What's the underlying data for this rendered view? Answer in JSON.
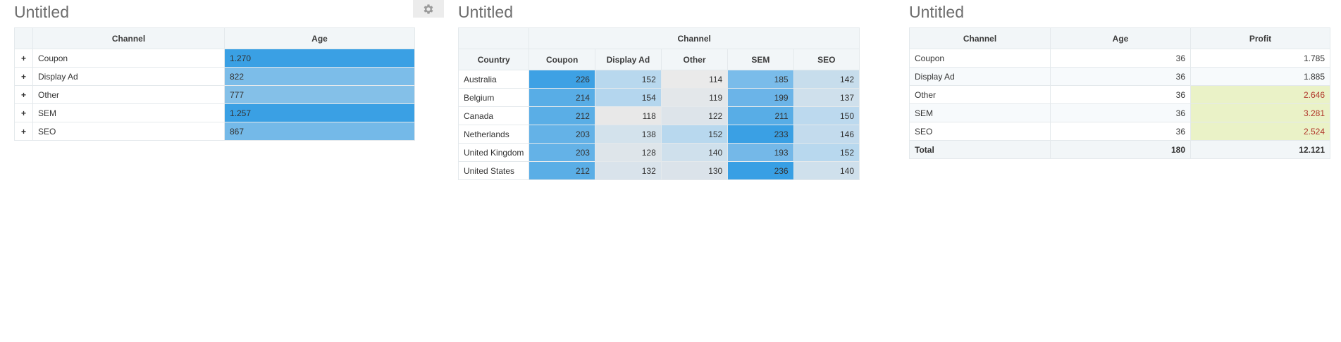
{
  "widgets": [
    {
      "title": "Untitled",
      "headers": [
        "Channel",
        "Age"
      ],
      "rows": [
        {
          "label": "Coupon",
          "value": "1.270",
          "color": "#3aa0e4"
        },
        {
          "label": "Display Ad",
          "value": "822",
          "color": "#7cbde9"
        },
        {
          "label": "Other",
          "value": "777",
          "color": "#84c0e8"
        },
        {
          "label": "SEM",
          "value": "1.257",
          "color": "#3aa0e4"
        },
        {
          "label": "SEO",
          "value": "867",
          "color": "#74b9e8"
        }
      ],
      "expander_symbol": "+",
      "settings_icon": "gear-icon"
    },
    {
      "title": "Untitled",
      "column_group": "Channel",
      "row_header": "Country",
      "columns": [
        "Coupon",
        "Display Ad",
        "Other",
        "SEM",
        "SEO"
      ],
      "rows": [
        {
          "label": "Australia",
          "values": [
            "226",
            "152",
            "114",
            "185",
            "142"
          ],
          "colors": [
            "#3ea1e4",
            "#b8d8ee",
            "#eaeaea",
            "#7abcea",
            "#c7ddec"
          ]
        },
        {
          "label": "Belgium",
          "values": [
            "214",
            "154",
            "119",
            "199",
            "137"
          ],
          "colors": [
            "#58ade6",
            "#b4d6ee",
            "#e3e7ea",
            "#6bb4e8",
            "#cfe0ec"
          ]
        },
        {
          "label": "Canada",
          "values": [
            "212",
            "118",
            "122",
            "211",
            "150"
          ],
          "colors": [
            "#5aaee6",
            "#e8e8e8",
            "#dde4ea",
            "#58ade6",
            "#bcd9ee"
          ]
        },
        {
          "label": "Netherlands",
          "values": [
            "203",
            "138",
            "152",
            "233",
            "146"
          ],
          "colors": [
            "#64b2e7",
            "#d3e2ec",
            "#b8d8ee",
            "#3aa0e4",
            "#c3dbed"
          ]
        },
        {
          "label": "United Kingdom",
          "values": [
            "203",
            "128",
            "140",
            "193",
            "152"
          ],
          "colors": [
            "#64b2e7",
            "#dee5ea",
            "#cfe0ec",
            "#74b8e8",
            "#b8d8ee"
          ]
        },
        {
          "label": "United States",
          "values": [
            "212",
            "132",
            "130",
            "236",
            "140"
          ],
          "colors": [
            "#5aaee6",
            "#d9e3eb",
            "#dbe3ea",
            "#389fe4",
            "#cfe0ec"
          ]
        }
      ]
    },
    {
      "title": "Untitled",
      "headers": [
        "Channel",
        "Age",
        "Profit"
      ],
      "rows": [
        {
          "label": "Coupon",
          "age": "36",
          "profit": "1.785",
          "highlight": false
        },
        {
          "label": "Display Ad",
          "age": "36",
          "profit": "1.885",
          "highlight": false
        },
        {
          "label": "Other",
          "age": "36",
          "profit": "2.646",
          "highlight": true
        },
        {
          "label": "SEM",
          "age": "36",
          "profit": "3.281",
          "highlight": true
        },
        {
          "label": "SEO",
          "age": "36",
          "profit": "2.524",
          "highlight": true
        }
      ],
      "total": {
        "label": "Total",
        "age": "180",
        "profit": "12.121"
      },
      "highlight_bg": "#eaf2c7",
      "highlight_text": "#b0352a"
    }
  ]
}
